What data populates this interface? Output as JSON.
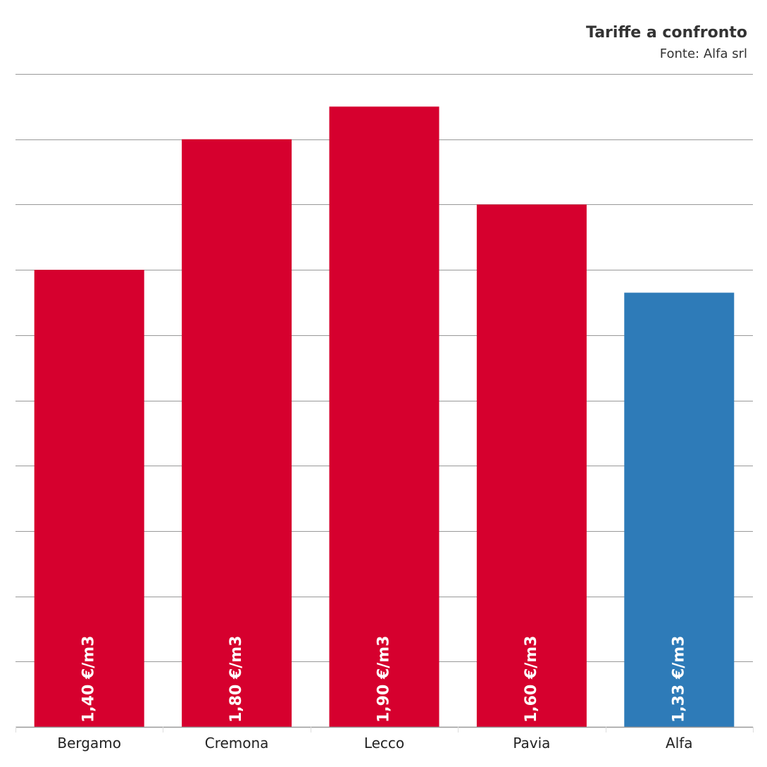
{
  "chart_data": {
    "type": "bar",
    "title": "Tariffe a confronto",
    "subtitle": "Fonte: Alfa srl",
    "categories": [
      "Bergamo",
      "Cremona",
      "Lecco",
      "Pavia",
      "Alfa"
    ],
    "values": [
      1.4,
      1.8,
      1.9,
      1.6,
      1.33
    ],
    "value_labels": [
      "1,40 €/m3",
      "1,80 €/m3",
      "1,90 €/m3",
      "1,60 €/m3",
      "1,33 €/m3"
    ],
    "bar_colors": [
      "#d6002e",
      "#d6002e",
      "#d6002e",
      "#d6002e",
      "#2e7bb8"
    ],
    "ylim": [
      0,
      2.0
    ],
    "ytick_step": 0.2,
    "grid": true,
    "xlabel": "",
    "ylabel": ""
  }
}
